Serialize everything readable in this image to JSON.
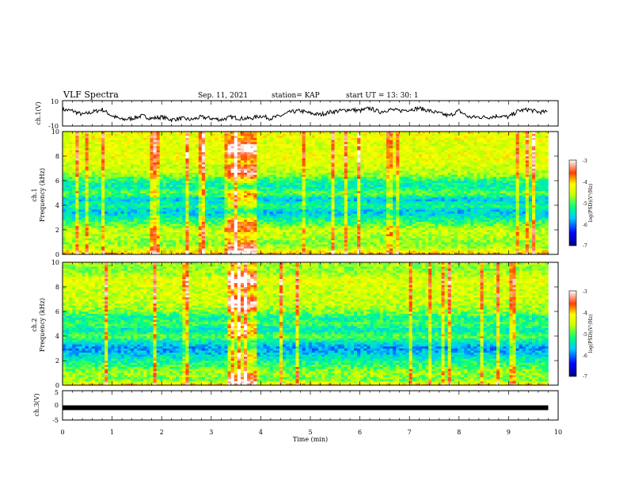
{
  "header": {
    "title": "VLF Spectra",
    "date": "Sep. 11, 2021",
    "station": "station= KAP",
    "start": "start  UT  =   13: 30: 1"
  },
  "chart_data": [
    {
      "type": "line",
      "name": "ch1-waveform",
      "ylabel": "ch.1(V)",
      "ylim": [
        -10,
        10
      ],
      "yticks": [
        "10",
        "-10"
      ],
      "xlim": [
        0,
        10
      ],
      "x_minutes": [
        0,
        0.2,
        0.4,
        0.6,
        0.8,
        1.0,
        1.2,
        1.4,
        1.6,
        1.8,
        2.0,
        2.2,
        2.4,
        2.6,
        2.8,
        3.0,
        3.2,
        3.4,
        3.6,
        3.8,
        4.0,
        4.2,
        4.4,
        4.6,
        4.8,
        5.0,
        5.2,
        5.4,
        5.6,
        5.8,
        6.0,
        6.2,
        6.4,
        6.6,
        6.8,
        7.0,
        7.2,
        7.4,
        7.6,
        7.8,
        8.0,
        8.2,
        8.4,
        8.6,
        8.8,
        9.0,
        9.2,
        9.4,
        9.6,
        9.8
      ],
      "y_volts": [
        3,
        2,
        -1,
        1,
        3,
        -2,
        -5,
        -4,
        -2,
        -4,
        -3,
        -5,
        -4,
        -5,
        -3,
        -4,
        -5,
        -3,
        -4,
        -4,
        -2,
        -4,
        -2,
        1,
        2,
        0,
        -1,
        1,
        2,
        3,
        2,
        4,
        1,
        3,
        2,
        3,
        4,
        2,
        0,
        -2,
        2,
        -3,
        -3,
        -3,
        -2,
        -3,
        2,
        3,
        1,
        1
      ]
    },
    {
      "type": "heatmap",
      "name": "ch1-spectrogram",
      "ylabel": "ch.1\nFrequency (kHz)",
      "xlabel": "Time (min)",
      "xlim": [
        0,
        10
      ],
      "ylim": [
        0,
        10
      ],
      "yticks": [
        "0",
        "2",
        "4",
        "6",
        "8",
        "10"
      ],
      "colorbar": {
        "label": "log(PSD)(V²/Hz)",
        "range": [
          -7,
          -3
        ],
        "ticks": [
          "-3",
          "-4",
          "-5",
          "-6",
          "-7"
        ]
      },
      "freq_profile_khz": [
        0,
        0.5,
        1,
        1.5,
        2,
        2.5,
        3,
        3.5,
        4,
        4.5,
        5,
        5.5,
        6,
        6.5,
        7,
        7.5,
        8,
        8.5,
        9,
        9.5,
        10
      ],
      "freq_profile_logpsd": [
        -3.8,
        -4.6,
        -4.8,
        -4.6,
        -4.5,
        -5.0,
        -5.4,
        -5.7,
        -5.2,
        -5.7,
        -4.9,
        -5.4,
        -5.2,
        -4.7,
        -4.5,
        -4.4,
        -4.3,
        -4.4,
        -4.4,
        -4.3,
        -4.3
      ],
      "burst_window_min": [
        3.3,
        3.9
      ]
    },
    {
      "type": "heatmap",
      "name": "ch2-spectrogram",
      "ylabel": "ch.2\nFrequency (kHz)",
      "xlabel": "Time (min)",
      "xlim": [
        0,
        10
      ],
      "ylim": [
        0,
        10
      ],
      "yticks": [
        "0",
        "2",
        "4",
        "6",
        "8",
        "10"
      ],
      "colorbar": {
        "label": "log(PSD)(V²/Hz)",
        "range": [
          -7,
          -3
        ],
        "ticks": [
          "-3",
          "-4",
          "-5",
          "-6",
          "-7"
        ]
      },
      "freq_profile_khz": [
        0,
        0.5,
        1,
        1.5,
        2,
        2.5,
        3,
        3.5,
        4,
        4.5,
        5,
        5.5,
        6,
        6.5,
        7,
        7.5,
        8,
        8.5,
        9,
        9.5,
        10
      ],
      "freq_profile_logpsd": [
        -4.0,
        -4.9,
        -4.7,
        -5.0,
        -5.3,
        -5.6,
        -5.9,
        -5.5,
        -4.9,
        -5.5,
        -5.0,
        -5.3,
        -4.8,
        -4.6,
        -4.5,
        -4.5,
        -4.5,
        -4.3,
        -4.6,
        -4.8,
        -4.6
      ],
      "burst_window_min": [
        3.3,
        3.9
      ]
    },
    {
      "type": "line",
      "name": "ch3-waveform",
      "ylabel": "ch.3(V)",
      "xlabel": "Time (min)",
      "ylim": [
        -5,
        5
      ],
      "yticks": [
        "5",
        "0",
        "-5"
      ],
      "xlim": [
        0,
        10
      ],
      "xticks": [
        "0",
        "1",
        "2",
        "3",
        "4",
        "5",
        "6",
        "7",
        "8",
        "9",
        "10"
      ],
      "x_minutes": [
        0,
        9.8
      ],
      "y_volts": [
        -0.8,
        -0.8
      ]
    }
  ]
}
